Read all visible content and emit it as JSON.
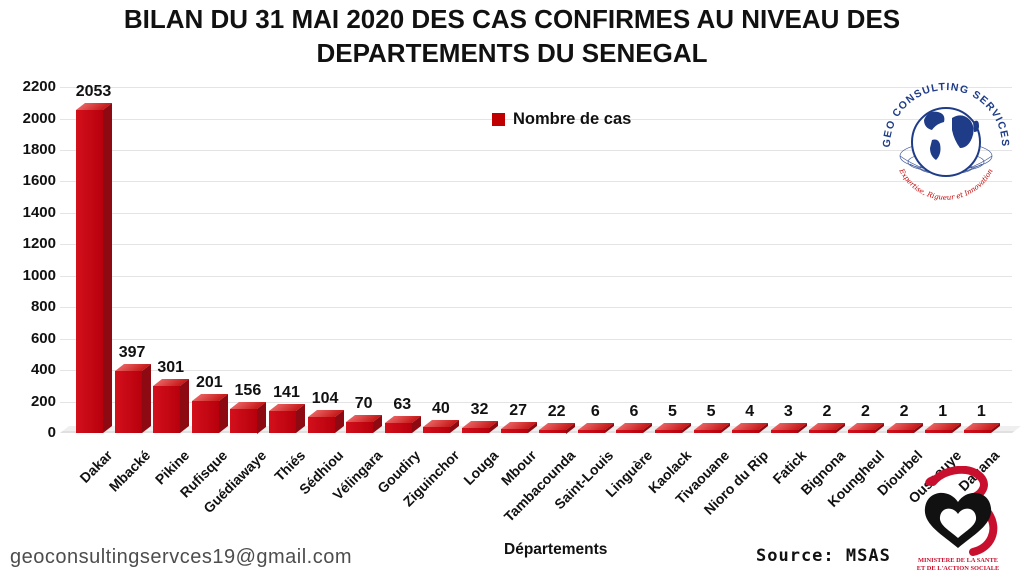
{
  "title": {
    "line1": "BILAN DU 31 MAI 2020 DES CAS CONFIRMES AU NIVEAU DES",
    "line2": "DEPARTEMENTS DU SENEGAL"
  },
  "legend": {
    "label": "Nombre de cas",
    "color": "#c00000"
  },
  "chart_data": {
    "type": "bar",
    "title": "BILAN DU 31 MAI 2020 DES CAS CONFIRMES AU NIVEAU DES DEPARTEMENTS DU SENEGAL",
    "series_name": "Nombre de cas",
    "categories": [
      "Dakar",
      "Mbacké",
      "Pikine",
      "Rufisque",
      "Guédiawaye",
      "Thiés",
      "Sédhiou",
      "Vélingara",
      "Goudiry",
      "Ziguinchor",
      "Louga",
      "Mbour",
      "Tambacounda",
      "Saint-Louis",
      "Linguère",
      "Kaolack",
      "Tivaouane",
      "Nioro du Rip",
      "Fatick",
      "Bignona",
      "Koungheul",
      "Diourbel",
      "Oussouye",
      "Dagana"
    ],
    "values": [
      2053,
      397,
      301,
      201,
      156,
      141,
      104,
      70,
      63,
      40,
      32,
      27,
      22,
      6,
      6,
      5,
      5,
      4,
      3,
      2,
      2,
      2,
      1,
      1
    ],
    "xlabel": "Départements",
    "ylabel": "",
    "ylim": [
      0,
      2200
    ],
    "ytick_step": 200,
    "grid": true,
    "legend_position": "top-center",
    "bar_style": "3d-column",
    "bar_color_front": "#c00511",
    "bar_color_side": "#8d0a12",
    "bar_color_top": "#d94040"
  },
  "footer": {
    "email": "geoconsultingservces19@gmail.com",
    "xlabel": "Départements",
    "source": "Source: MSAS"
  },
  "logos": {
    "geo": {
      "arc_text": "GEO CONSULTING SERVICES",
      "tagline": "Expertise, Rigueur et Innovation",
      "navy": "#1f3c88",
      "red": "#c00000"
    },
    "ministry": {
      "line1": "MINISTERE DE LA SANTE",
      "line2": "ET DE L'ACTION SOCIALE",
      "red": "#c8102e"
    }
  }
}
